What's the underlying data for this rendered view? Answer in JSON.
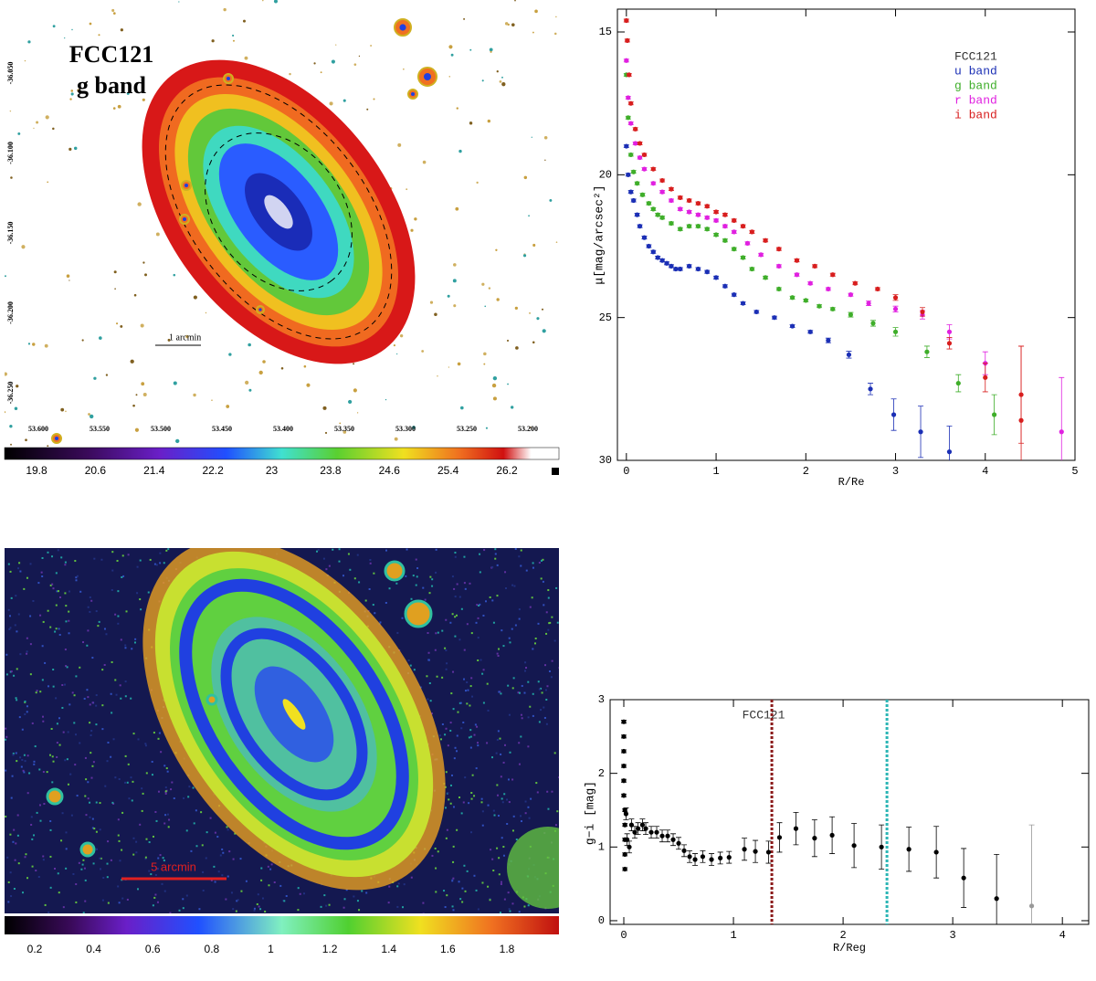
{
  "images": [
    {
      "title": "FCC121",
      "subtitle": "g band",
      "scale_label": "1 arcmin",
      "ra_labels": [
        "53.600",
        "53.550",
        "53.500",
        "53.450",
        "53.400",
        "53.350",
        "53.300",
        "53.250",
        "53.200"
      ],
      "dec_labels": [
        "-36.050",
        "-36.100",
        "-36.150",
        "-36.200",
        "-36.250"
      ],
      "colorbar_ticks": [
        19.8,
        20.6,
        21.4,
        22.2,
        23,
        23.8,
        24.6,
        25.4,
        26.2
      ]
    },
    {
      "scale_label": "5 arcmin",
      "colorbar_ticks": [
        0.2,
        0.4,
        0.6,
        0.8,
        1,
        1.2,
        1.4,
        1.6,
        1.8
      ]
    }
  ],
  "chart_data": [
    {
      "type": "scatter",
      "xlabel": "R/Re",
      "ylabel": "μ[mag/arcsec²]",
      "legend_title": "FCC121",
      "xlim": [
        -0.1,
        5
      ],
      "ylim": [
        30,
        14.2
      ],
      "xticks": [
        0,
        1,
        2,
        3,
        4,
        5
      ],
      "yticks": [
        15,
        20,
        25,
        30
      ],
      "series": [
        {
          "name": "u band",
          "color": "#1b2fb5",
          "x": [
            0,
            0.02,
            0.05,
            0.08,
            0.12,
            0.15,
            0.2,
            0.25,
            0.3,
            0.35,
            0.4,
            0.45,
            0.5,
            0.55,
            0.6,
            0.7,
            0.8,
            0.9,
            1.0,
            1.1,
            1.2,
            1.3,
            1.45,
            1.65,
            1.85,
            2.05,
            2.25,
            2.48,
            2.72,
            2.98,
            3.28,
            3.6
          ],
          "values": [
            19.0,
            20.0,
            20.6,
            20.9,
            21.4,
            21.8,
            22.2,
            22.5,
            22.7,
            22.9,
            23.0,
            23.1,
            23.2,
            23.3,
            23.3,
            23.2,
            23.3,
            23.4,
            23.6,
            23.9,
            24.2,
            24.5,
            24.8,
            25.0,
            25.3,
            25.5,
            25.8,
            26.3,
            27.5,
            28.4,
            29.0,
            29.7
          ],
          "errors": [
            0.05,
            0.05,
            0.05,
            0.05,
            0.05,
            0.05,
            0.05,
            0.05,
            0.05,
            0.05,
            0.05,
            0.05,
            0.05,
            0.05,
            0.05,
            0.05,
            0.05,
            0.05,
            0.05,
            0.05,
            0.05,
            0.05,
            0.05,
            0.05,
            0.05,
            0.05,
            0.08,
            0.12,
            0.2,
            0.55,
            0.9,
            0.9
          ]
        },
        {
          "name": "g band",
          "color": "#3fae2a",
          "x": [
            0,
            0.02,
            0.05,
            0.08,
            0.12,
            0.18,
            0.25,
            0.3,
            0.35,
            0.4,
            0.5,
            0.6,
            0.7,
            0.8,
            0.9,
            1.0,
            1.1,
            1.2,
            1.3,
            1.4,
            1.55,
            1.7,
            1.85,
            2.0,
            2.15,
            2.3,
            2.5,
            2.75,
            3.0,
            3.35,
            3.7,
            4.1
          ],
          "values": [
            16.5,
            18.0,
            19.3,
            19.9,
            20.3,
            20.7,
            21.0,
            21.2,
            21.4,
            21.5,
            21.7,
            21.9,
            21.8,
            21.8,
            21.9,
            22.1,
            22.3,
            22.6,
            22.9,
            23.3,
            23.6,
            24.0,
            24.3,
            24.4,
            24.6,
            24.7,
            24.9,
            25.2,
            25.5,
            26.2,
            27.3,
            28.4
          ],
          "errors": [
            0.05,
            0.05,
            0.05,
            0.05,
            0.05,
            0.05,
            0.05,
            0.05,
            0.05,
            0.05,
            0.05,
            0.05,
            0.05,
            0.05,
            0.05,
            0.05,
            0.05,
            0.05,
            0.05,
            0.05,
            0.05,
            0.05,
            0.05,
            0.05,
            0.05,
            0.05,
            0.08,
            0.1,
            0.15,
            0.2,
            0.3,
            0.7
          ]
        },
        {
          "name": "r band",
          "color": "#e020e0",
          "x": [
            0,
            0.02,
            0.05,
            0.1,
            0.15,
            0.2,
            0.3,
            0.4,
            0.5,
            0.6,
            0.7,
            0.8,
            0.9,
            1.0,
            1.1,
            1.2,
            1.35,
            1.5,
            1.7,
            1.9,
            2.05,
            2.25,
            2.5,
            2.7,
            3.0,
            3.3,
            3.6,
            4.0,
            4.85
          ],
          "values": [
            16.0,
            17.3,
            18.2,
            18.9,
            19.4,
            19.8,
            20.3,
            20.6,
            20.9,
            21.2,
            21.3,
            21.4,
            21.5,
            21.6,
            21.8,
            22.0,
            22.4,
            22.8,
            23.2,
            23.5,
            23.8,
            24.0,
            24.2,
            24.5,
            24.7,
            24.9,
            25.5,
            26.6,
            29.0
          ],
          "errors": [
            0.05,
            0.05,
            0.05,
            0.05,
            0.05,
            0.05,
            0.05,
            0.05,
            0.05,
            0.05,
            0.05,
            0.05,
            0.05,
            0.05,
            0.05,
            0.05,
            0.05,
            0.05,
            0.05,
            0.05,
            0.05,
            0.05,
            0.05,
            0.08,
            0.1,
            0.15,
            0.25,
            0.4,
            1.9
          ]
        },
        {
          "name": "i band",
          "color": "#d81e1e",
          "x": [
            0,
            0.01,
            0.03,
            0.05,
            0.1,
            0.15,
            0.2,
            0.3,
            0.4,
            0.5,
            0.6,
            0.7,
            0.8,
            0.9,
            1.0,
            1.1,
            1.2,
            1.3,
            1.4,
            1.55,
            1.7,
            1.9,
            2.1,
            2.3,
            2.55,
            2.8,
            3.0,
            3.3,
            3.6,
            4.0,
            4.4,
            4.4
          ],
          "values": [
            14.6,
            15.3,
            16.5,
            17.5,
            18.4,
            18.9,
            19.3,
            19.8,
            20.2,
            20.5,
            20.8,
            20.9,
            21.0,
            21.1,
            21.3,
            21.4,
            21.6,
            21.8,
            22.0,
            22.3,
            22.6,
            23.0,
            23.2,
            23.5,
            23.8,
            24.0,
            24.3,
            24.8,
            25.9,
            27.1,
            28.6,
            27.7
          ],
          "errors": [
            0.05,
            0.05,
            0.05,
            0.05,
            0.05,
            0.05,
            0.05,
            0.05,
            0.05,
            0.05,
            0.05,
            0.05,
            0.05,
            0.05,
            0.05,
            0.05,
            0.05,
            0.05,
            0.05,
            0.05,
            0.05,
            0.05,
            0.05,
            0.05,
            0.05,
            0.05,
            0.1,
            0.15,
            0.2,
            0.5,
            2.6,
            1.7
          ]
        }
      ]
    },
    {
      "type": "scatter",
      "xlabel": "R/Reg",
      "ylabel": "g−i [mag]",
      "annotation": "FCC121",
      "xlim": [
        -0.125,
        4.24
      ],
      "ylim": [
        -0.05,
        3
      ],
      "xticks": [
        0,
        1,
        2,
        3,
        4
      ],
      "yticks": [
        0,
        1,
        2,
        3
      ],
      "vlines": [
        {
          "x": 1.35,
          "color": "#8b1a1a"
        },
        {
          "x": 2.4,
          "color": "#2bb5b5"
        }
      ],
      "series": [
        {
          "color": "#000000",
          "x": [
            0,
            0,
            0,
            0,
            0,
            0,
            0.01,
            0.01,
            0.01,
            0.01,
            0.01,
            0.02,
            0.03,
            0.05,
            0.07,
            0.1,
            0.13,
            0.17,
            0.2,
            0.25,
            0.3,
            0.35,
            0.4,
            0.45,
            0.5,
            0.55,
            0.6,
            0.65,
            0.72,
            0.8,
            0.88,
            0.96,
            1.1,
            1.2,
            1.32,
            1.42,
            1.57,
            1.74,
            1.9,
            2.1,
            2.35,
            2.6,
            2.85,
            3.1,
            3.4
          ],
          "values": [
            2.7,
            2.5,
            2.3,
            2.1,
            1.9,
            1.7,
            1.5,
            1.3,
            1.1,
            0.9,
            0.7,
            1.45,
            1.1,
            1.0,
            1.3,
            1.2,
            1.25,
            1.3,
            1.25,
            1.2,
            1.2,
            1.15,
            1.15,
            1.1,
            1.05,
            0.95,
            0.87,
            0.83,
            0.87,
            0.83,
            0.85,
            0.86,
            0.97,
            0.94,
            0.93,
            1.13,
            1.25,
            1.12,
            1.16,
            1.02,
            1.0,
            0.97,
            0.93,
            0.58,
            0.3
          ],
          "errors": [
            0.02,
            0.02,
            0.02,
            0.02,
            0.02,
            0.02,
            0.02,
            0.02,
            0.02,
            0.02,
            0.02,
            0.08,
            0.08,
            0.08,
            0.08,
            0.08,
            0.08,
            0.08,
            0.08,
            0.08,
            0.08,
            0.08,
            0.08,
            0.08,
            0.08,
            0.08,
            0.08,
            0.08,
            0.08,
            0.08,
            0.08,
            0.08,
            0.15,
            0.15,
            0.15,
            0.2,
            0.22,
            0.25,
            0.25,
            0.3,
            0.3,
            0.3,
            0.35,
            0.4,
            0.6
          ]
        },
        {
          "color": "#999999",
          "x": [
            3.72
          ],
          "values": [
            0.2
          ],
          "errors": [
            1.1
          ]
        }
      ]
    }
  ]
}
